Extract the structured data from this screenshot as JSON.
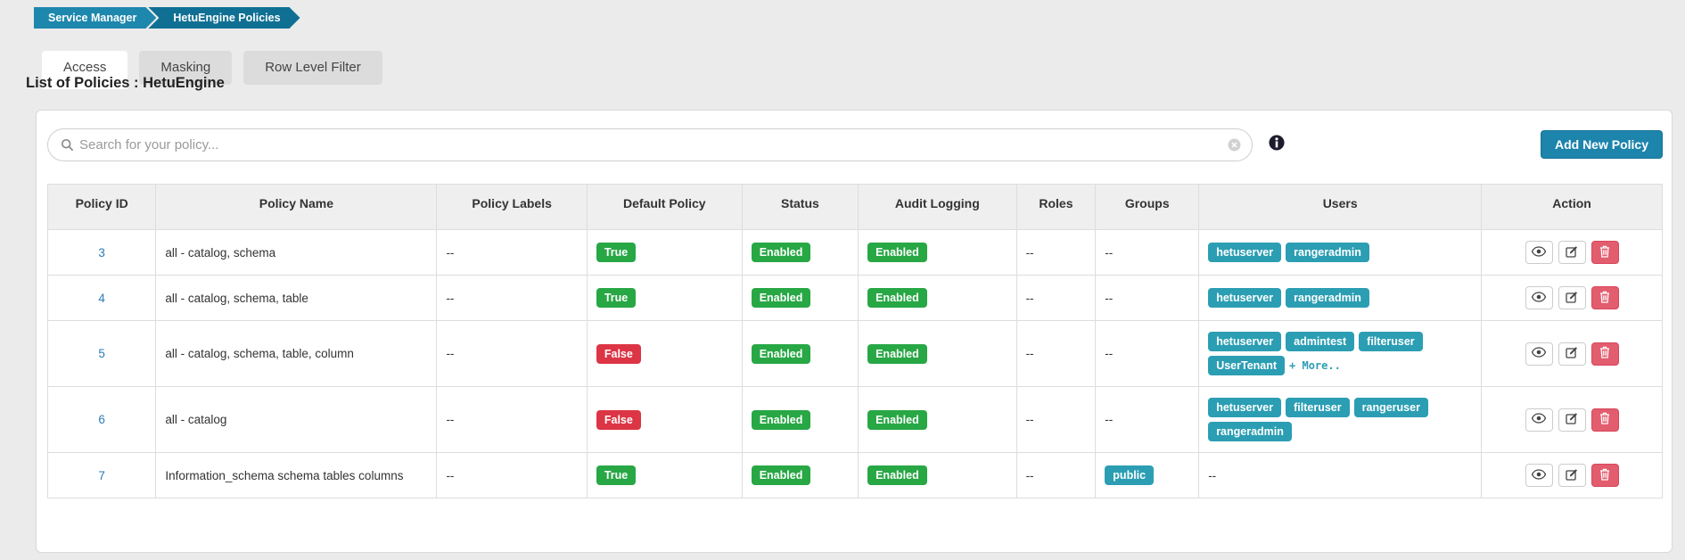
{
  "breadcrumb": {
    "items": [
      {
        "label": "Service Manager"
      },
      {
        "label": "HetuEngine Policies"
      }
    ]
  },
  "tabs": [
    {
      "label": "Access",
      "active": true
    },
    {
      "label": "Masking",
      "active": false
    },
    {
      "label": "Row Level Filter",
      "active": false
    }
  ],
  "page_title": "List of Policies : HetuEngine",
  "toolbar": {
    "search_placeholder": "Search for your policy...",
    "search_value": "",
    "search_icon": "search-icon",
    "clear_icon": "clear-search-icon",
    "info_icon": "info-icon",
    "add_button_label": "Add New Policy"
  },
  "colors": {
    "breadcrumb_primary": "#1e87ad",
    "breadcrumb_secondary": "#0f7093",
    "accent_blue": "#1d84ac",
    "badge_green": "#28a745",
    "badge_red": "#dc3545",
    "badge_teal": "#2b9eb3",
    "delete_button": "#e25d6e",
    "link_blue": "#2b7cb5",
    "page_background": "#ebebeb"
  },
  "table": {
    "columns": [
      "Policy ID",
      "Policy Name",
      "Policy Labels",
      "Default Policy",
      "Status",
      "Audit Logging",
      "Roles",
      "Groups",
      "Users",
      "Action"
    ],
    "col_widths": [
      "6.7%",
      "17.4%",
      "9.3%",
      "9.6%",
      "7.2%",
      "9.8%",
      "4.9%",
      "6.4%",
      "17.5%",
      "11.2%"
    ],
    "action_icons": [
      {
        "name": "eye-icon",
        "action": "view"
      },
      {
        "name": "edit-icon",
        "action": "edit"
      },
      {
        "name": "trash-icon",
        "action": "delete"
      }
    ],
    "rows": [
      {
        "id": "3",
        "name": "all - catalog, schema",
        "labels": "--",
        "default_policy": "True",
        "status": "Enabled",
        "audit_logging": "Enabled",
        "roles": "--",
        "groups": "--",
        "users": [
          "hetuserver",
          "rangeradmin"
        ],
        "more_label": ""
      },
      {
        "id": "4",
        "name": "all - catalog, schema, table",
        "labels": "--",
        "default_policy": "True",
        "status": "Enabled",
        "audit_logging": "Enabled",
        "roles": "--",
        "groups": "--",
        "users": [
          "hetuserver",
          "rangeradmin"
        ],
        "more_label": ""
      },
      {
        "id": "5",
        "name": "all - catalog, schema, table, column",
        "labels": "--",
        "default_policy": "False",
        "status": "Enabled",
        "audit_logging": "Enabled",
        "roles": "--",
        "groups": "--",
        "users": [
          "hetuserver",
          "admintest",
          "filteruser",
          "UserTenant"
        ],
        "more_label": "+ More.."
      },
      {
        "id": "6",
        "name": "all - catalog",
        "labels": "--",
        "default_policy": "False",
        "status": "Enabled",
        "audit_logging": "Enabled",
        "roles": "--",
        "groups": "--",
        "users": [
          "hetuserver",
          "filteruser",
          "rangeruser",
          "rangeradmin"
        ],
        "more_label": ""
      },
      {
        "id": "7",
        "name": "Information_schema schema tables columns",
        "labels": "--",
        "default_policy": "True",
        "status": "Enabled",
        "audit_logging": "Enabled",
        "roles": "--",
        "groups": [
          "public"
        ],
        "users": "--",
        "more_label": ""
      }
    ]
  }
}
